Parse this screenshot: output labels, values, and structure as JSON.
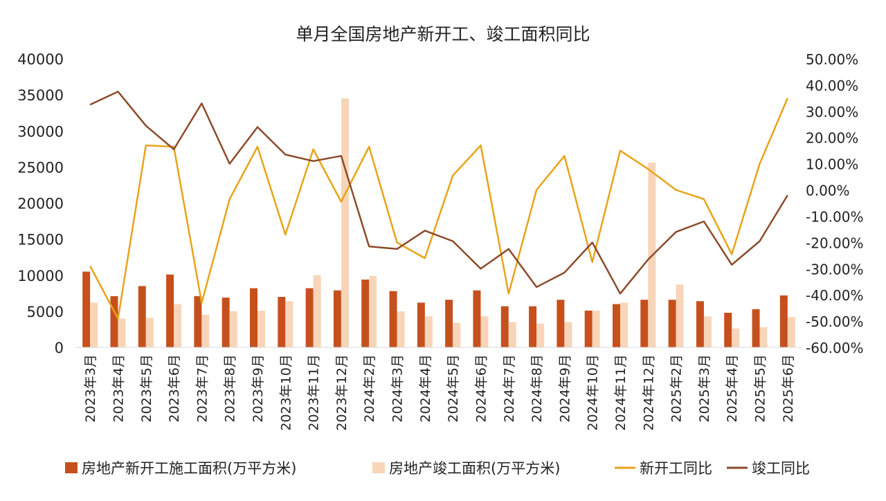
{
  "chart_data": {
    "type": "bar+line (dual axis)",
    "title": "单月全国房地产新开工、竣工面积同比",
    "categories": [
      "2023年3月",
      "2023年4月",
      "2023年5月",
      "2023年6月",
      "2023年7月",
      "2023年8月",
      "2023年9月",
      "2023年10月",
      "2023年11月",
      "2023年12月",
      "2024年2月",
      "2024年3月",
      "2024年4月",
      "2024年5月",
      "2024年6月",
      "2024年7月",
      "2024年8月",
      "2024年9月",
      "2024年10月",
      "2024年11月",
      "2024年12月",
      "2025年2月",
      "2025年3月",
      "2025年4月",
      "2025年5月",
      "2025年6月"
    ],
    "y_left": {
      "min": 0,
      "max": 40000,
      "step": 5000,
      "ticks": [
        "0",
        "5000",
        "10000",
        "15000",
        "20000",
        "25000",
        "30000",
        "35000",
        "40000"
      ]
    },
    "y_right": {
      "min": -60,
      "max": 50,
      "step": 10,
      "ticks": [
        "-60.00%",
        "-50.00%",
        "-40.00%",
        "-30.00%",
        "-20.00%",
        "-10.00%",
        "0.00%",
        "10.00%",
        "20.00%",
        "30.00%",
        "40.00%",
        "50.00%"
      ]
    },
    "series": [
      {
        "name": "房地产新开工施工面积(万平方米)",
        "type": "bar",
        "axis": "left",
        "color": "#c5501e",
        "values": [
          10500,
          7100,
          8500,
          10100,
          7100,
          6900,
          8200,
          7000,
          8200,
          7900,
          9400,
          7800,
          6200,
          6600,
          7900,
          5700,
          5700,
          6600,
          5100,
          6000,
          6600,
          6600,
          6400,
          4800,
          5300,
          7200
        ]
      },
      {
        "name": "房地产竣工面积(万平方米)",
        "type": "bar",
        "axis": "left",
        "color": "#f8d5b8",
        "values": [
          6200,
          4000,
          4100,
          6000,
          4500,
          5000,
          5100,
          6400,
          10000,
          34500,
          9900,
          5000,
          4300,
          3400,
          4300,
          3500,
          3300,
          3500,
          5100,
          6200,
          25600,
          8700,
          4300,
          2600,
          2800,
          4200
        ]
      },
      {
        "name": "新开工同比",
        "type": "line",
        "axis": "right",
        "color": "#e8a317",
        "values": [
          -29.0,
          -49.0,
          17.0,
          16.5,
          -43.0,
          -3.5,
          16.5,
          -17.0,
          15.5,
          -4.5,
          16.5,
          -20.0,
          -26.0,
          5.5,
          17.0,
          -39.5,
          0.0,
          13.0,
          -27.5,
          15.0,
          8.0,
          0.0,
          -3.5,
          -24.5,
          10.0,
          35.0
        ]
      },
      {
        "name": "竣工同比",
        "type": "line",
        "axis": "right",
        "color": "#8b4a2a",
        "values": [
          32.5,
          37.5,
          24.5,
          15.5,
          33.0,
          10.0,
          24.0,
          13.5,
          11.0,
          13.0,
          -21.5,
          -22.5,
          -15.5,
          -19.5,
          -30.0,
          -22.5,
          -37.0,
          -31.5,
          -20.0,
          -39.5,
          -26.5,
          -16.0,
          -12.0,
          -28.5,
          -19.5,
          -2.0
        ]
      }
    ],
    "legend_position": "bottom"
  }
}
